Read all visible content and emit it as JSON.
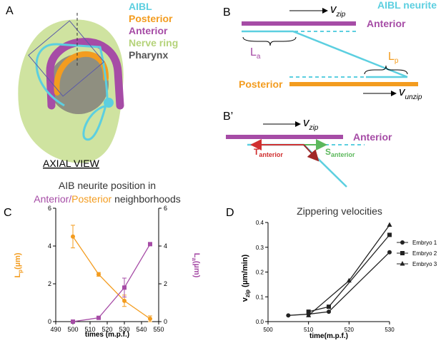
{
  "panels": {
    "A": {
      "letter": "A",
      "legend": [
        "AIBL",
        "Posterior",
        "Anterior",
        "Nerve ring",
        "Pharynx"
      ],
      "caption": "AXIAL VIEW"
    },
    "B": {
      "letter": "B",
      "neurite": "AIBL neurite",
      "anterior": "Anterior",
      "posterior": "Posterior",
      "v_zip": {
        "main": "v",
        "sub": "zip"
      },
      "v_unzip": {
        "main": "v",
        "sub": "unzip"
      },
      "La": {
        "main": "L",
        "sub": "a"
      },
      "Lp": {
        "main": "L",
        "sub": "p"
      }
    },
    "B2": {
      "letter": "B’",
      "v_zip": {
        "main": "v",
        "sub": "zip"
      },
      "anterior": "Anterior",
      "T": {
        "main": "T",
        "sub": "anterior"
      },
      "S": {
        "main": "S",
        "sub": "anterior"
      }
    }
  },
  "chart_data": [
    {
      "type": "line",
      "letter": "C",
      "title": "AIB neurite position in",
      "title_parts": [
        {
          "text": "Anterior/",
          "color": "#a64ca6"
        },
        {
          "text": "Posterior",
          "color": "#f39c1f"
        },
        {
          "text": " neighborhoods",
          "color": "#333333"
        }
      ],
      "xlabel": "times (m.p.f.)",
      "ylabel": {
        "main": "L",
        "sub": "p",
        "rest": "(µm)"
      },
      "y2label": {
        "main": "L",
        "sub": "a",
        "rest": "(µm)"
      },
      "xlim": [
        490,
        550
      ],
      "xticks": [
        490,
        500,
        510,
        520,
        530,
        540,
        550
      ],
      "ylim": [
        0,
        6
      ],
      "yticks": [
        0,
        2,
        4,
        6
      ],
      "y2lim": [
        0,
        6
      ],
      "y2ticks": [
        0,
        2,
        4,
        6
      ],
      "series": [
        {
          "name": "Lp",
          "color": "#f39c1f",
          "marker": "circle",
          "x": [
            500,
            515,
            530,
            545
          ],
          "values": [
            4.5,
            2.5,
            1.1,
            0.15
          ],
          "errors": [
            0.6,
            0.1,
            0.3,
            0.15
          ]
        },
        {
          "name": "La",
          "color": "#a64ca6",
          "marker": "square",
          "axis": "y2",
          "x": [
            500,
            515,
            530,
            545
          ],
          "values": [
            0,
            0.2,
            1.8,
            4.1
          ],
          "errors": [
            0.05,
            0.05,
            0.5,
            0.05
          ]
        }
      ]
    },
    {
      "type": "line",
      "letter": "D",
      "title": "Zippering velocities",
      "xlabel": "time(m.p.f.)",
      "ylabel": {
        "main": "v",
        "sub": "zip",
        "rest": " (µm/min)"
      },
      "xlim": [
        500,
        530
      ],
      "xticks": [
        500,
        510,
        520,
        530
      ],
      "ylim": [
        0,
        0.4
      ],
      "yticks": [
        {
          "value": 0,
          "label": "0.0"
        },
        0.1,
        0.2,
        0.3,
        0.4
      ],
      "legend": "right",
      "series": [
        {
          "name": "Embryo 1",
          "color": "#222222",
          "marker": "circle",
          "x": [
            505,
            510,
            515,
            530
          ],
          "values": [
            0.025,
            0.03,
            0.04,
            0.28
          ]
        },
        {
          "name": "Embryo 2",
          "color": "#222222",
          "marker": "square",
          "x": [
            510,
            515,
            530
          ],
          "values": [
            0.04,
            0.06,
            0.35
          ]
        },
        {
          "name": "Embryo 3",
          "color": "#222222",
          "marker": "triangle",
          "x": [
            510,
            520,
            530
          ],
          "values": [
            0.025,
            0.165,
            0.39
          ]
        }
      ]
    }
  ]
}
